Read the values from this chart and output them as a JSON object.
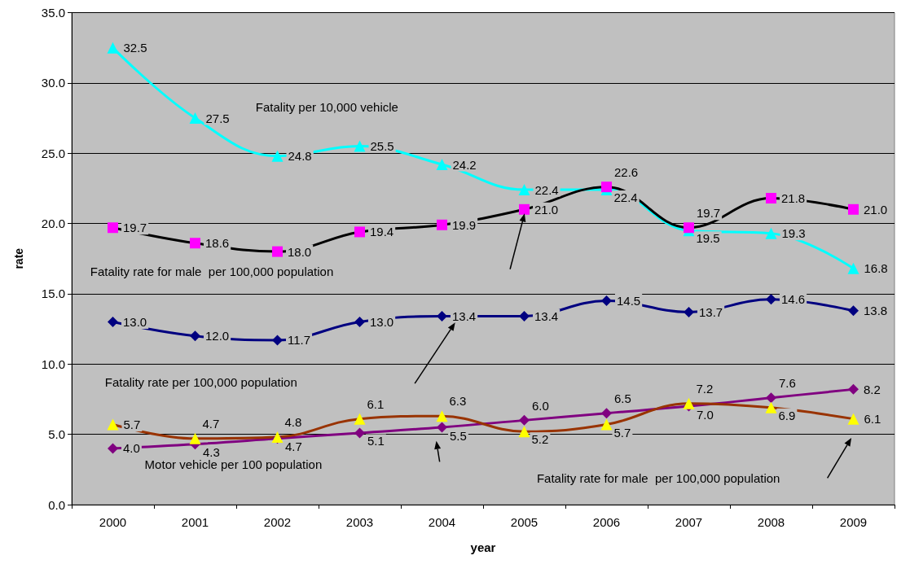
{
  "chart_data": {
    "type": "line",
    "xlabel": "year",
    "ylabel": "rate",
    "categories": [
      "2000",
      "2001",
      "2002",
      "2003",
      "2004",
      "2005",
      "2006",
      "2007",
      "2008",
      "2009"
    ],
    "ylim": [
      0,
      35
    ],
    "yticks": [
      {
        "value": 0,
        "label": "0.0"
      },
      {
        "value": 5,
        "label": "5.0"
      },
      {
        "value": 10,
        "label": "10.0"
      },
      {
        "value": 15,
        "label": "15.0"
      },
      {
        "value": 20,
        "label": "20.0"
      },
      {
        "value": 25,
        "label": "25.0"
      },
      {
        "value": 30,
        "label": "30.0"
      },
      {
        "value": 35,
        "label": "35.0"
      }
    ],
    "grid": "y",
    "line_style": "solid",
    "series": [
      {
        "color": "#00ffff",
        "marker": "triangle",
        "colors": [
          "#00ffff",
          "#00ffff",
          "#00ffff",
          "#00ffff",
          "#00ffff",
          "#00ffff",
          "#00ffff",
          "#00ffff",
          "#00ffff",
          "#00ffff"
        ],
        "values": [
          32.5,
          27.5,
          24.8,
          25.5,
          24.2,
          22.4,
          22.4,
          19.5,
          19.3,
          16.8
        ],
        "value_labels": [
          "32.5",
          "27.5",
          "24.8",
          "25.5",
          "24.2",
          "22.4",
          "22.4",
          "19.5",
          "19.3",
          "16.8"
        ]
      },
      {
        "color": "#000000",
        "marker": "square",
        "colors": [
          "#ff00ff",
          "#ff00ff",
          "#ff00ff",
          "#ff00ff",
          "#ff00ff",
          "#ff00ff",
          "#ff00ff",
          "#ff00ff",
          "#ff00ff",
          "#ff00ff"
        ],
        "values": [
          19.7,
          18.6,
          18.0,
          19.4,
          19.9,
          21.0,
          22.6,
          19.7,
          21.8,
          21.0
        ],
        "value_labels": [
          "19.7",
          "18.6",
          "18.0",
          "19.4",
          "19.9",
          "21.0",
          "22.6",
          "19.7",
          "21.8",
          "21.0"
        ]
      },
      {
        "color": "#000080",
        "marker": "diamond",
        "colors": [
          "#000080",
          "#000080",
          "#000080",
          "#000080",
          "#000080",
          "#000080",
          "#000080",
          "#000080",
          "#000080",
          "#000080"
        ],
        "values": [
          13.0,
          12.0,
          11.7,
          13.0,
          13.4,
          13.4,
          14.5,
          13.7,
          14.6,
          13.8
        ],
        "value_labels": [
          "13.0",
          "12.0",
          "11.7",
          "13.0",
          "13.4",
          "13.4",
          "14.5",
          "13.7",
          "14.6",
          "13.8"
        ]
      },
      {
        "color": "#800080",
        "marker": "diamond",
        "colors": [
          "#800080",
          "#800080",
          "#800080",
          "#800080",
          "#800080",
          "#800080",
          "#800080",
          "#800080",
          "#800080",
          "#800080"
        ],
        "values": [
          4.0,
          4.3,
          4.7,
          5.1,
          5.5,
          6.0,
          6.5,
          7.0,
          7.6,
          8.2
        ],
        "value_labels": [
          "4.0",
          "4.3",
          "4.7",
          "5.1",
          "5.5",
          "6.0",
          "6.5",
          "7.0",
          "7.6",
          "8.2"
        ]
      },
      {
        "color": "#993300",
        "marker": "triangle",
        "colors": [
          "#ffff00",
          "#ffff00",
          "#ffff00",
          "#ffff00",
          "#ffff00",
          "#ffff00",
          "#ffff00",
          "#ffff00",
          "#ffff00",
          "#ffff00"
        ],
        "values": [
          5.7,
          4.7,
          4.8,
          6.1,
          6.3,
          5.2,
          5.7,
          7.2,
          6.9,
          6.1
        ],
        "value_labels": [
          "5.7",
          "4.7",
          "4.8",
          "6.1",
          "6.3",
          "5.2",
          "5.7",
          "7.2",
          "6.9",
          "6.1"
        ]
      }
    ],
    "annotations": [
      "Fatality per 10,000 vehicle",
      "Fatality rate for male  per 100,000 population",
      "Fatality rate per 100,000 population",
      "Motor vehicle per 100 population",
      "Fatality rate for male  per 100,000 population"
    ]
  }
}
